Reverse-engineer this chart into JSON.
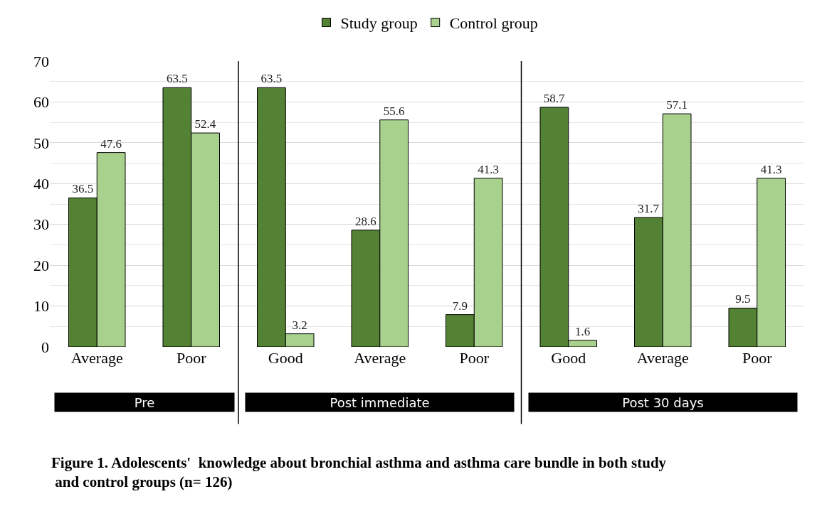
{
  "chart_data": {
    "type": "bar",
    "categories": [
      "Average",
      "Poor",
      "Good",
      "Average",
      "Poor",
      "Good",
      "Average",
      "Poor"
    ],
    "series": [
      {
        "name": "Study group",
        "color": "#548235",
        "values": [
          36.5,
          63.5,
          63.5,
          28.6,
          7.9,
          58.7,
          31.7,
          9.5
        ]
      },
      {
        "name": "Control group",
        "color": "#a9d18e",
        "values": [
          47.6,
          52.4,
          3.2,
          55.6,
          41.3,
          1.6,
          57.1,
          41.3
        ]
      }
    ],
    "ylim": [
      0,
      70
    ],
    "yticks": [
      0,
      10,
      20,
      30,
      40,
      50,
      60,
      70
    ],
    "grid": "y",
    "legend": "top",
    "data_labels": true,
    "annotations": [
      "Pre",
      "Post immediate",
      "Post 30 days",
      "Figure 1. Adolescents'  knowledge about bronchial asthma and asthma care bundle in both study and control groups (n= 126)"
    ]
  }
}
